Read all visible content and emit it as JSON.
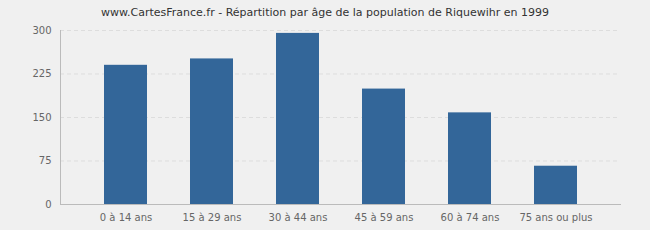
{
  "chart_data": {
    "type": "bar",
    "title": "www.CartesFrance.fr - Répartition par âge de la population de Riquewihr en 1999",
    "categories": [
      "0 à 14 ans",
      "15 à 29 ans",
      "30 à 44 ans",
      "45 à 59 ans",
      "60 à 74 ans",
      "75 ans ou plus"
    ],
    "values": [
      240,
      251,
      295,
      199,
      158,
      66
    ],
    "color": "#336699",
    "ylim": [
      0,
      300
    ],
    "yticks": [
      0,
      75,
      150,
      225,
      300
    ],
    "grid": true
  }
}
